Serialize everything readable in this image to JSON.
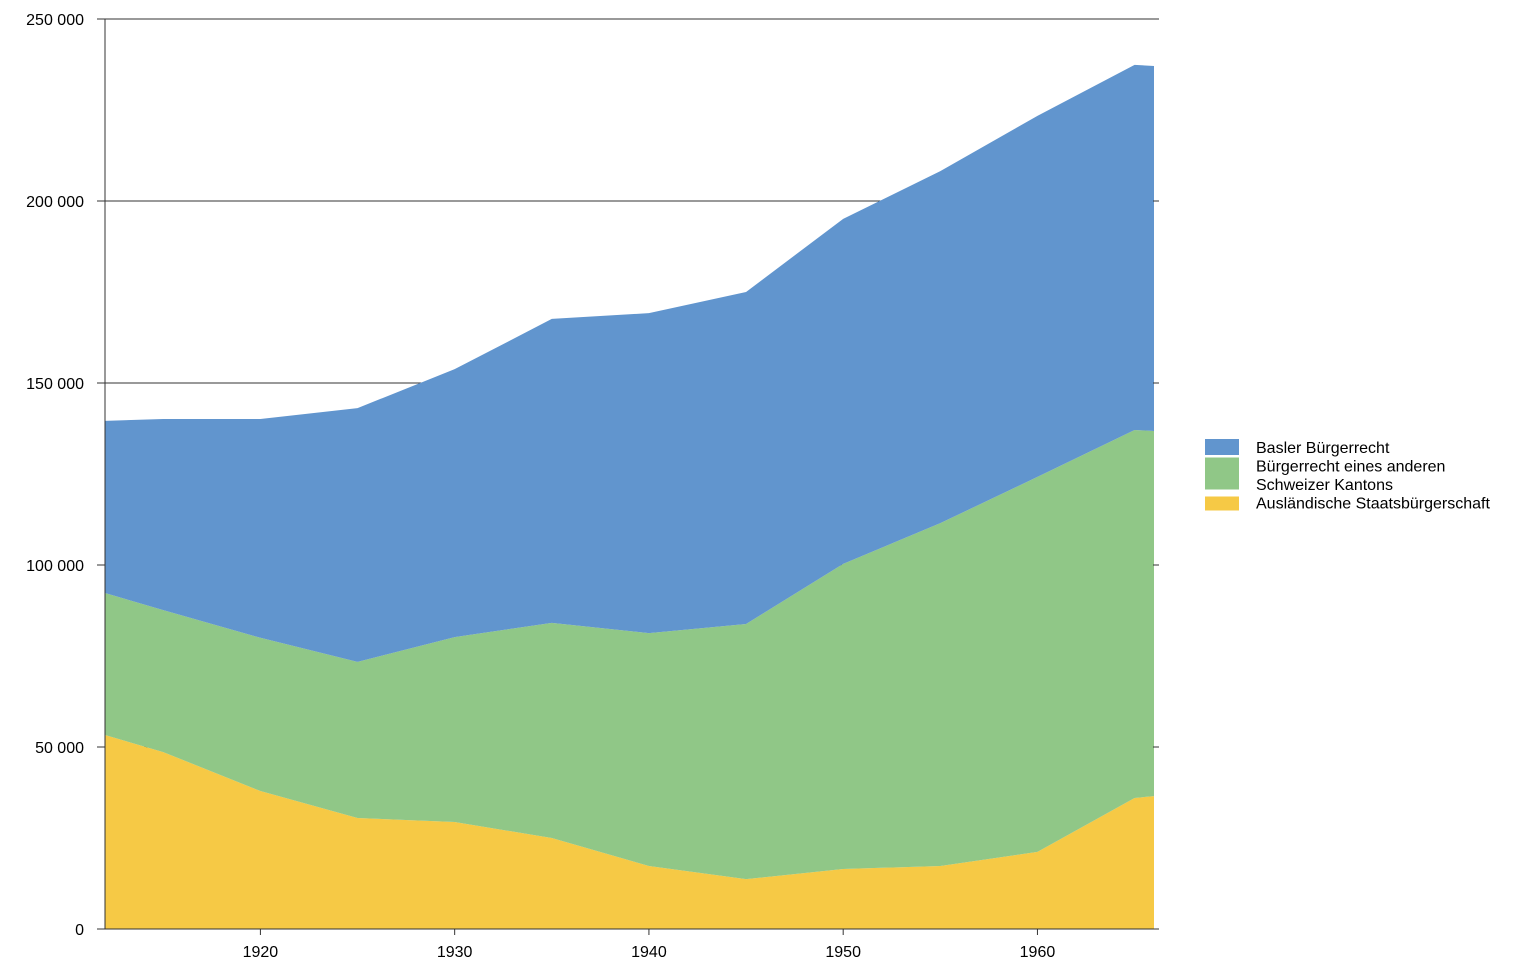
{
  "chart_data": {
    "type": "area",
    "stacked": true,
    "title": "",
    "xlabel": "",
    "ylabel": "",
    "x": [
      1912,
      1915,
      1920,
      1925,
      1930,
      1935,
      1940,
      1945,
      1950,
      1955,
      1960,
      1965,
      1966
    ],
    "xlim": [
      1912,
      1966
    ],
    "ylim": [
      0,
      250000
    ],
    "x_ticks": [
      1920,
      1930,
      1940,
      1950,
      1960
    ],
    "y_ticks": [
      0,
      50000,
      100000,
      150000,
      200000,
      250000
    ],
    "y_tick_labels": [
      "0",
      "50 000",
      "100 000",
      "150 000",
      "200 000",
      "250 000"
    ],
    "grid": true,
    "legend_position": "right",
    "series": [
      {
        "name": "Ausländische Staatsbürgerschaft",
        "color": "#F6C945",
        "values": [
          53300,
          48600,
          37900,
          30500,
          29400,
          25000,
          17300,
          13700,
          16500,
          17300,
          21200,
          36000,
          36500
        ]
      },
      {
        "name": "Bürgerrecht eines anderen Schweizer Kantons",
        "name_lines": [
          "Bürgerrecht eines anderen",
          "Schweizer Kantons"
        ],
        "color": "#90C787",
        "values": [
          39000,
          39000,
          42100,
          42900,
          50800,
          59100,
          64000,
          70100,
          83800,
          94200,
          103000,
          101100,
          100300
        ]
      },
      {
        "name": "Basler Bürgerrecht",
        "color": "#6195CE",
        "values": [
          47300,
          52500,
          60100,
          69700,
          73600,
          83500,
          87900,
          91200,
          94800,
          96700,
          99200,
          100300,
          100300
        ]
      }
    ]
  }
}
